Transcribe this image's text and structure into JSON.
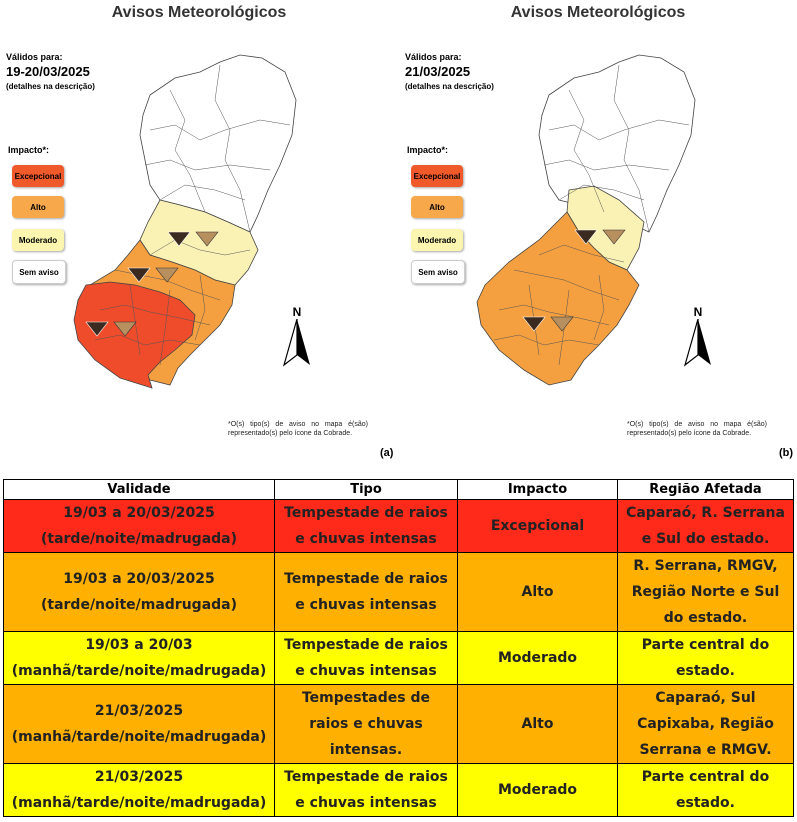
{
  "panels": [
    {
      "title": "Avisos Meteorológicos",
      "valid_label": "Válidos para:",
      "valid_date": "19-20/03/2025",
      "valid_note": "(detalhes na descrição)",
      "impact_label": "Impacto*:",
      "letter": "(a)",
      "north": "N",
      "footnote": "*O(s) tipo(s) de aviso no mapa é(são) representado(s) pelo ícone da Cobrade."
    },
    {
      "title": "Avisos Meteorológicos",
      "valid_label": "Válidos para:",
      "valid_date": "21/03/2025",
      "valid_note": "(detalhes na descrição)",
      "impact_label": "Impacto*:",
      "letter": "(b)",
      "north": "N",
      "footnote": "*O(s) tipo(s) de aviso no mapa é(são) representado(s) pelo ícone da Cobrade."
    }
  ],
  "legend": [
    {
      "label": "Excepcional",
      "color": "#f05a2a"
    },
    {
      "label": "Alto",
      "color": "#f7a84a"
    },
    {
      "label": "Moderado",
      "color": "#fbf5b0"
    },
    {
      "label": "Sem aviso",
      "color": "#ffffff"
    }
  ],
  "colors": {
    "excepcional": "#ef4c2c",
    "alto": "#f5a040",
    "moderado": "#faf2b4",
    "sem_aviso": "#ffffff",
    "icon": "storm-rain-icon"
  },
  "table": {
    "headers": [
      "Validade",
      "Tipo",
      "Impacto",
      "Região Afetada"
    ],
    "rows": [
      {
        "level": "exc",
        "validade": [
          "19/03 a 20/03/2025",
          "(tarde/noite/madrugada)"
        ],
        "tipo": [
          "Tempestade de raios",
          "e chuvas intensas"
        ],
        "impacto": "Excepcional",
        "regiao": [
          "Caparaó, R. Serrana",
          "e Sul do estado."
        ]
      },
      {
        "level": "alt",
        "validade": [
          "19/03 a 20/03/2025",
          "(tarde/noite/madrugada)"
        ],
        "tipo": [
          "Tempestade de raios",
          "e chuvas intensas"
        ],
        "impacto": "Alto",
        "regiao": [
          "R. Serrana, RMGV,",
          "Região Norte e Sul",
          "do estado."
        ]
      },
      {
        "level": "mod",
        "validade": [
          "19/03 a 20/03",
          "(manhã/tarde/noite/madrugada)"
        ],
        "tipo": [
          "Tempestade de raios",
          "e chuvas intensas"
        ],
        "impacto": "Moderado",
        "regiao": [
          "Parte central do",
          "estado."
        ]
      },
      {
        "level": "alt",
        "validade": [
          "21/03/2025",
          "(manhã/tarde/noite/madrugada)"
        ],
        "tipo": [
          "Tempestades de",
          "raios e chuvas",
          "intensas."
        ],
        "impacto": "Alto",
        "regiao": [
          "Caparaó, Sul",
          "Capixaba, Região",
          "Serrana e RMGV."
        ]
      },
      {
        "level": "mod",
        "validade": [
          "21/03/2025",
          "(manhã/tarde/noite/madrugada)"
        ],
        "tipo": [
          "Tempestade de raios",
          "e chuvas intensas"
        ],
        "impacto": "Moderado",
        "regiao": [
          "Parte central do",
          "estado."
        ]
      }
    ]
  }
}
